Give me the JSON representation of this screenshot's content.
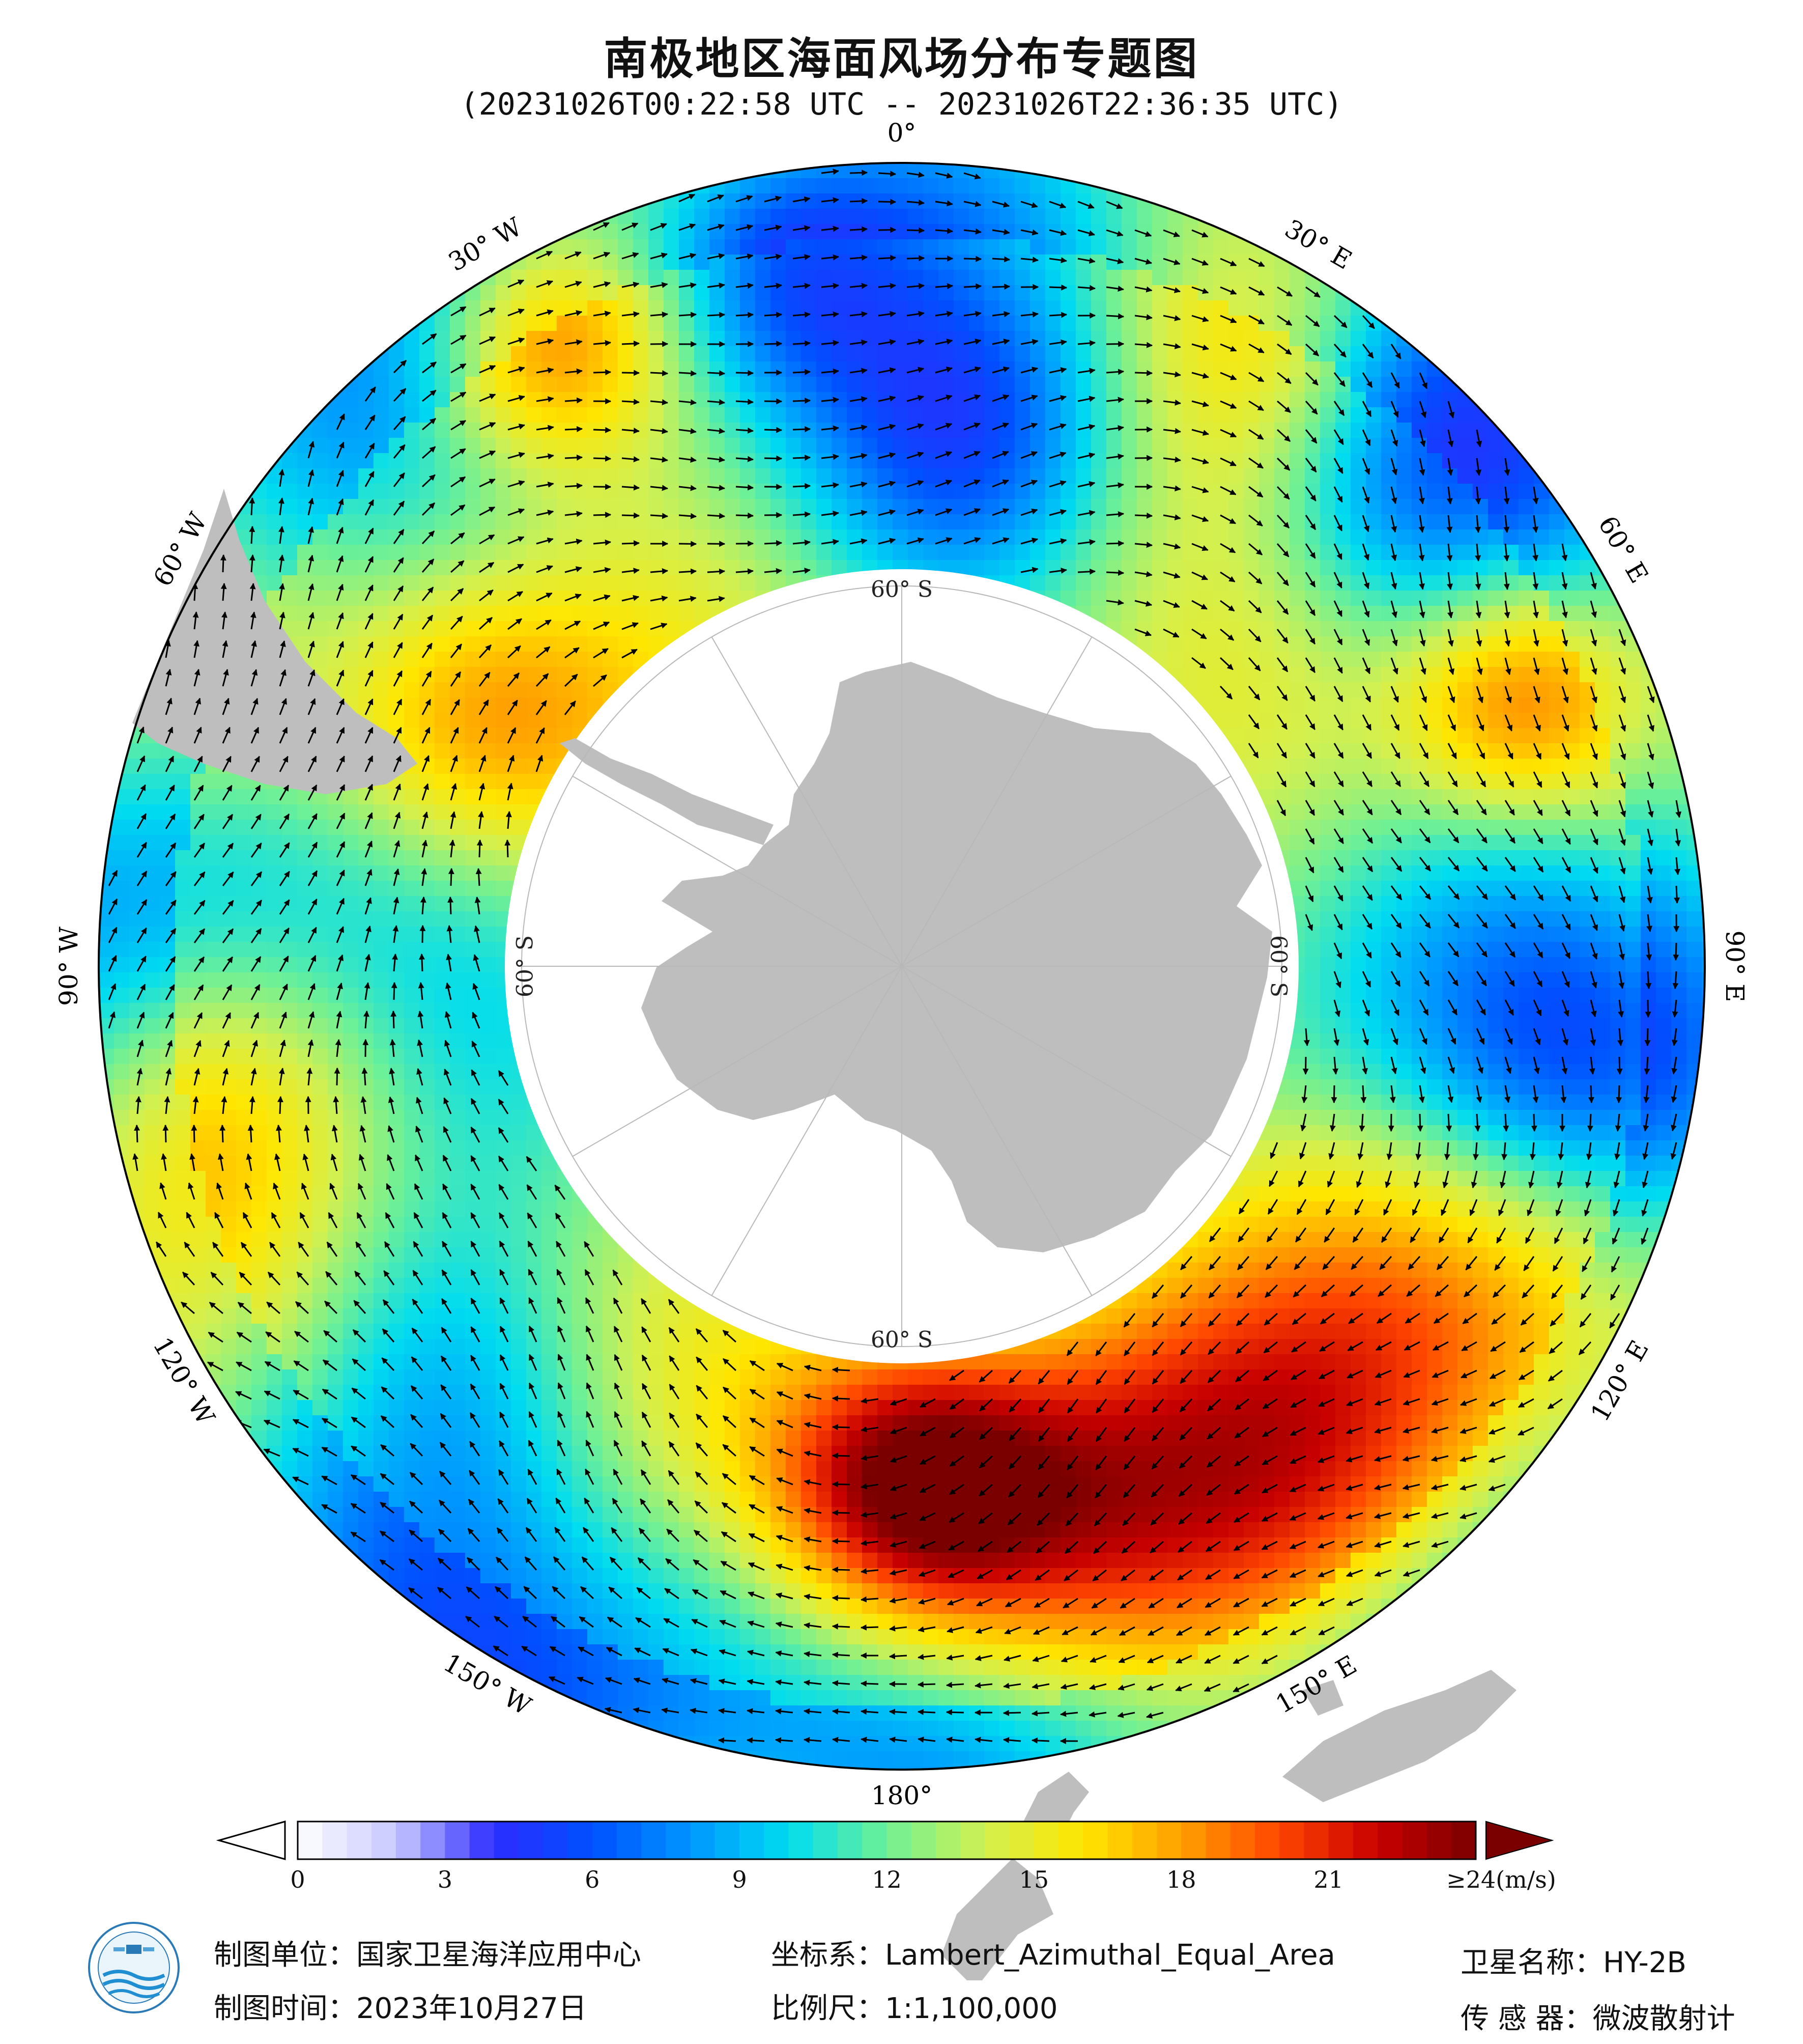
{
  "title": "南极地区海面风场分布专题图",
  "subtitle": "(20231026T00:22:58 UTC -- 20231026T22:36:35 UTC)",
  "map": {
    "projection_center": "South Pole",
    "longitude_labels": [
      {
        "text": "0°",
        "lon": 0
      },
      {
        "text": "30° E",
        "lon": 30
      },
      {
        "text": "60° E",
        "lon": 60
      },
      {
        "text": "90° E",
        "lon": 90
      },
      {
        "text": "120° E",
        "lon": 120
      },
      {
        "text": "150° E",
        "lon": 150
      },
      {
        "text": "180°",
        "lon": 180
      },
      {
        "text": "150° W",
        "lon": -150
      },
      {
        "text": "120° W",
        "lon": -120
      },
      {
        "text": "90° W",
        "lon": -90
      },
      {
        "text": "60° W",
        "lon": -60
      },
      {
        "text": "30° W",
        "lon": -30
      }
    ],
    "latitude_labels": [
      {
        "text": "60° S",
        "lon": 0
      },
      {
        "text": "60° S",
        "lon": 90
      },
      {
        "text": "60° S",
        "lon": 180
      },
      {
        "text": "60° S",
        "lon": -90
      }
    ],
    "land_color": "#bebebe",
    "ocean_nodata_color": "#ffffff",
    "arrow_color": "#000000"
  },
  "colorbar": {
    "ticks": [
      "0",
      "3",
      "6",
      "9",
      "12",
      "15",
      "18",
      "21"
    ],
    "max_label": "≥24(m/s)",
    "unit": "m/s",
    "range": [
      0,
      24
    ],
    "colors": [
      "#ffffff",
      "#c8c8ff",
      "#2b2bff",
      "#0050ff",
      "#0096ff",
      "#00dcf0",
      "#6ef096",
      "#d2f050",
      "#ffe600",
      "#ffa000",
      "#ff4600",
      "#c80000",
      "#7a0000"
    ]
  },
  "footer": {
    "org_label": "制图单位：国家卫星海洋应用中心",
    "date_label": "制图时间：2023年10月27日",
    "crs_label": "坐标系：Lambert_Azimuthal_Equal_Area",
    "scale_label": "比例尺：1:1,100,000",
    "satellite_label": "卫星名称：HY-2B",
    "sensor_label": "传 感 器：微波散射计"
  }
}
